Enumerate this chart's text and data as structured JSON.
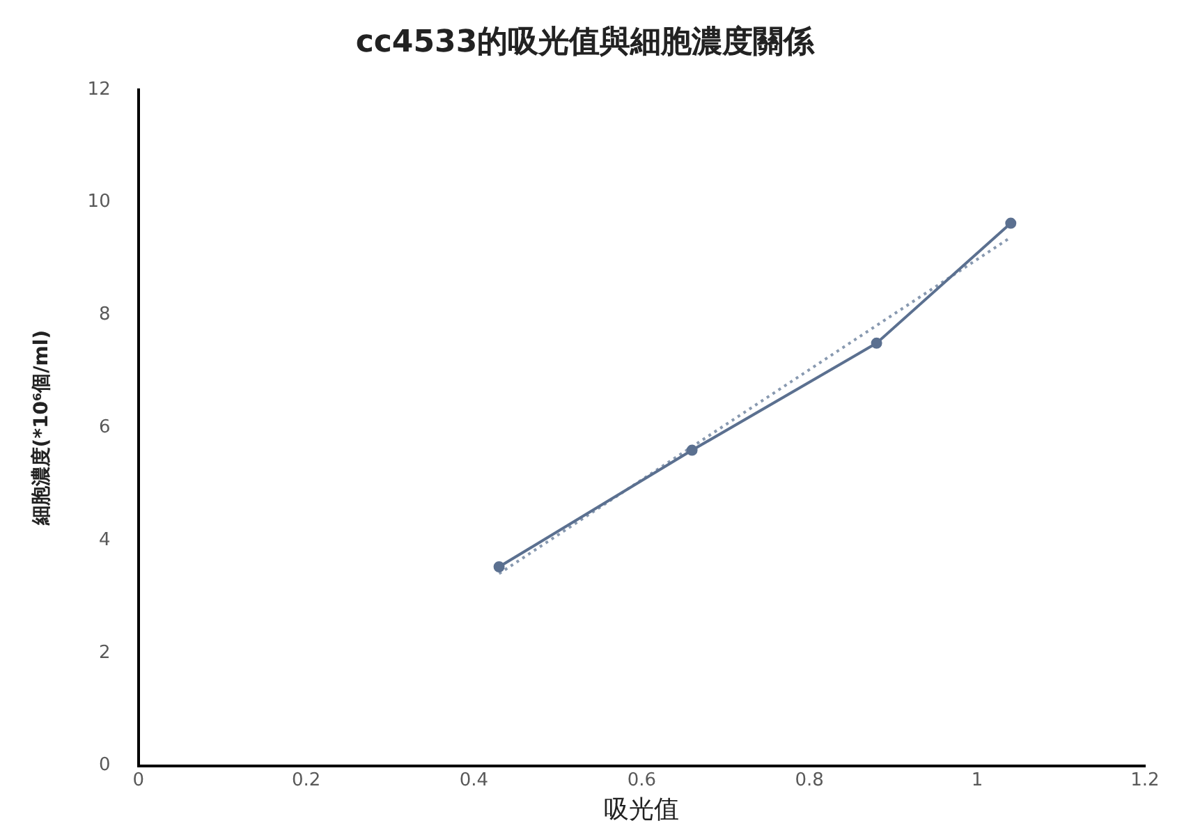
{
  "chart_data": {
    "type": "line",
    "title": "cc4533的吸光值與細胞濃度關係",
    "xlabel": "吸光值",
    "ylabel": "細胞濃度(*10⁶個/ml)",
    "x": [
      0.43,
      0.66,
      0.88,
      1.04
    ],
    "series": [
      {
        "color": "#5b7090",
        "values": [
          3.53,
          5.6,
          7.5,
          9.63
        ],
        "marker": "circle",
        "line_style": "solid"
      },
      {
        "color": "#8899b0",
        "x": [
          0.43,
          1.04
        ],
        "values": [
          3.41,
          9.38
        ],
        "marker": "none",
        "line_style": "dotted"
      }
    ],
    "xlim": [
      0,
      1.2
    ],
    "xticks": [
      0,
      0.2,
      0.4,
      0.6,
      0.8,
      1,
      1.2
    ],
    "ylim": [
      0,
      12
    ],
    "yticks": [
      0,
      2,
      4,
      6,
      8,
      10,
      12
    ],
    "grid": false,
    "legend": false
  }
}
